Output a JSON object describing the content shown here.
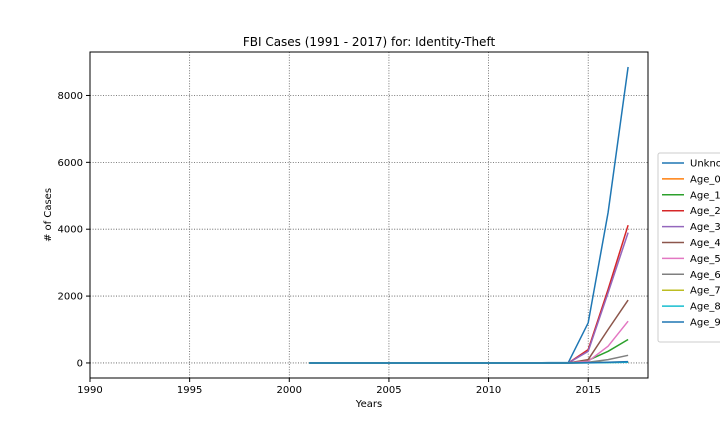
{
  "chart_data": {
    "type": "line",
    "title": "FBI Cases (1991 - 2017) for: Identity-Theft",
    "xlabel": "Years",
    "ylabel": "# of Cases",
    "xlim": [
      1990,
      2018
    ],
    "ylim": [
      -450,
      9300
    ],
    "xticks": [
      1990,
      1995,
      2000,
      2005,
      2010,
      2015
    ],
    "yticks": [
      0,
      2000,
      4000,
      6000,
      8000
    ],
    "grid": true,
    "legend_position": "right",
    "x": [
      2001,
      2002,
      2003,
      2004,
      2005,
      2006,
      2007,
      2008,
      2009,
      2010,
      2011,
      2012,
      2013,
      2014,
      2015,
      2016,
      2017
    ],
    "series": [
      {
        "name": "Unkno",
        "color": "#1f77b4",
        "values": [
          0,
          0,
          0,
          0,
          0,
          0,
          0,
          0,
          0,
          0,
          0,
          0,
          10,
          10,
          1200,
          4500,
          8850
        ]
      },
      {
        "name": "Age_0",
        "color": "#ff7f0e",
        "values": [
          0,
          0,
          0,
          0,
          0,
          0,
          0,
          0,
          0,
          0,
          0,
          0,
          0,
          0,
          10,
          20,
          30
        ]
      },
      {
        "name": "Age_1",
        "color": "#2ca02c",
        "values": [
          0,
          0,
          0,
          0,
          0,
          0,
          0,
          0,
          0,
          0,
          0,
          0,
          0,
          0,
          80,
          350,
          700
        ]
      },
      {
        "name": "Age_2",
        "color": "#d62728",
        "values": [
          0,
          0,
          0,
          0,
          0,
          0,
          0,
          0,
          0,
          0,
          0,
          0,
          0,
          0,
          400,
          2200,
          4120
        ]
      },
      {
        "name": "Age_3",
        "color": "#9467bd",
        "values": [
          0,
          0,
          0,
          0,
          0,
          0,
          0,
          0,
          0,
          0,
          0,
          0,
          0,
          0,
          350,
          2100,
          3900
        ]
      },
      {
        "name": "Age_4",
        "color": "#8c564b",
        "values": [
          0,
          0,
          0,
          0,
          0,
          0,
          0,
          0,
          0,
          0,
          0,
          0,
          0,
          0,
          100,
          1000,
          1880
        ]
      },
      {
        "name": "Age_5",
        "color": "#e377c2",
        "values": [
          0,
          0,
          0,
          0,
          0,
          0,
          0,
          0,
          0,
          0,
          0,
          0,
          0,
          0,
          50,
          500,
          1250
        ]
      },
      {
        "name": "Age_6",
        "color": "#7f7f7f",
        "values": [
          0,
          0,
          0,
          0,
          0,
          0,
          0,
          0,
          0,
          0,
          0,
          0,
          0,
          0,
          20,
          100,
          230
        ]
      },
      {
        "name": "Age_7",
        "color": "#bcbd22",
        "values": [
          0,
          0,
          0,
          0,
          0,
          0,
          0,
          0,
          0,
          0,
          0,
          0,
          0,
          0,
          5,
          15,
          30
        ]
      },
      {
        "name": "Age_8",
        "color": "#17becf",
        "values": [
          0,
          0,
          0,
          0,
          0,
          0,
          0,
          0,
          0,
          0,
          0,
          0,
          0,
          0,
          2,
          10,
          20
        ]
      },
      {
        "name": "Age_9",
        "color": "#1f77b4",
        "values": [
          0,
          0,
          0,
          0,
          0,
          0,
          0,
          0,
          0,
          0,
          0,
          0,
          0,
          0,
          5,
          20,
          40
        ]
      }
    ]
  }
}
